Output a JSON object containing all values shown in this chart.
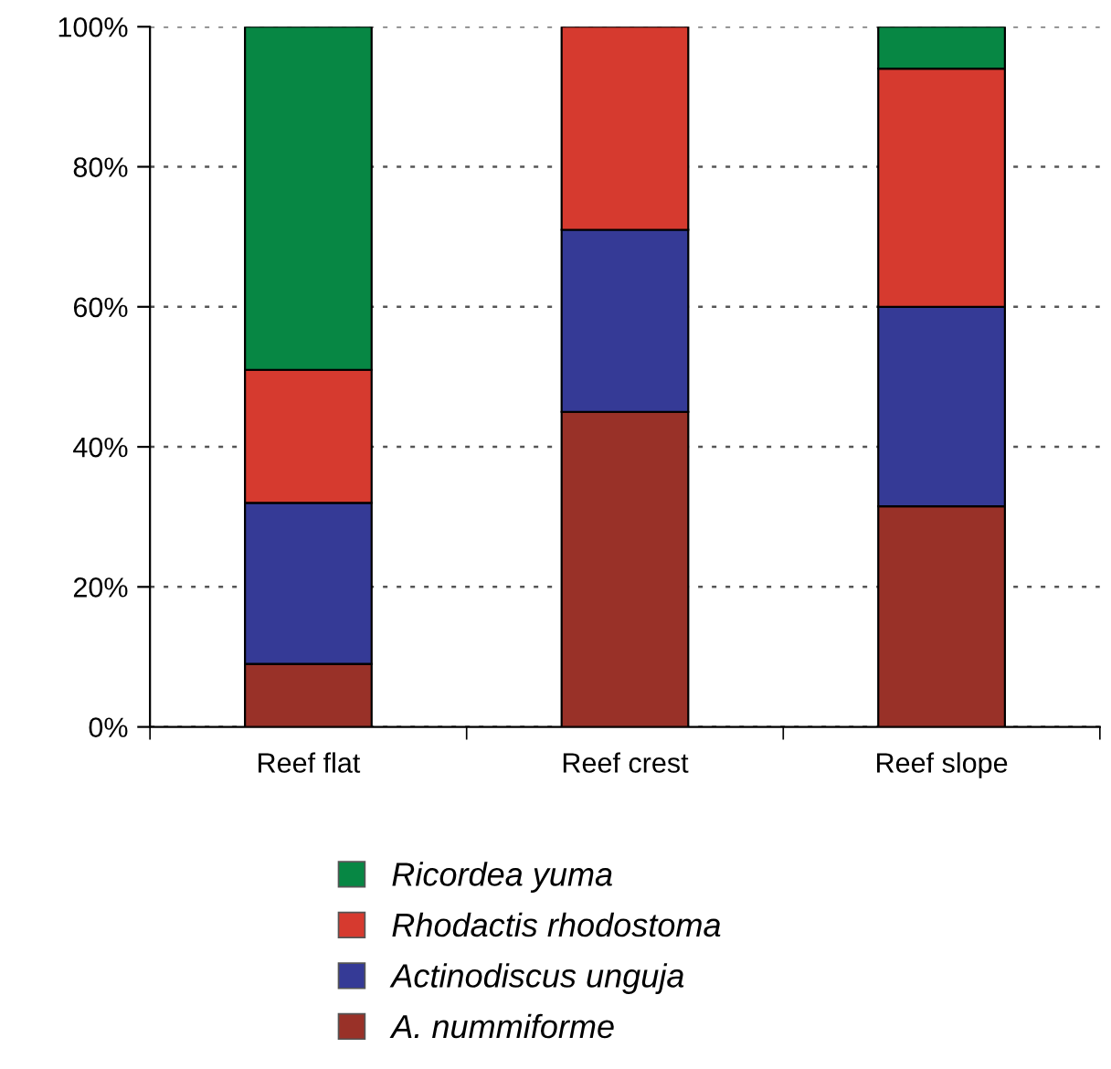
{
  "chart_data": {
    "type": "bar",
    "stacked": true,
    "categories": [
      "Reef flat",
      "Reef crest",
      "Reef slope"
    ],
    "series": [
      {
        "name": "A. nummiforme",
        "color": "#993128",
        "values": [
          9,
          45,
          31.5
        ]
      },
      {
        "name": "Actinodiscus unguja",
        "color": "#353a96",
        "values": [
          23,
          26,
          28.5
        ]
      },
      {
        "name": "Rhodactis rhodostoma",
        "color": "#d63a2f",
        "values": [
          19,
          29,
          34
        ]
      },
      {
        "name": "Ricordea yuma",
        "color": "#078744",
        "values": [
          49,
          null,
          6
        ]
      }
    ],
    "ylim": [
      0,
      100
    ],
    "yticks": [
      {
        "value": 0,
        "label": "0%"
      },
      {
        "value": 20,
        "label": "20%"
      },
      {
        "value": 40,
        "label": "40%"
      },
      {
        "value": 60,
        "label": "60%"
      },
      {
        "value": 80,
        "label": "80%"
      },
      {
        "value": 100,
        "label": "100%"
      }
    ],
    "grid": "y",
    "legend": "bottom"
  }
}
